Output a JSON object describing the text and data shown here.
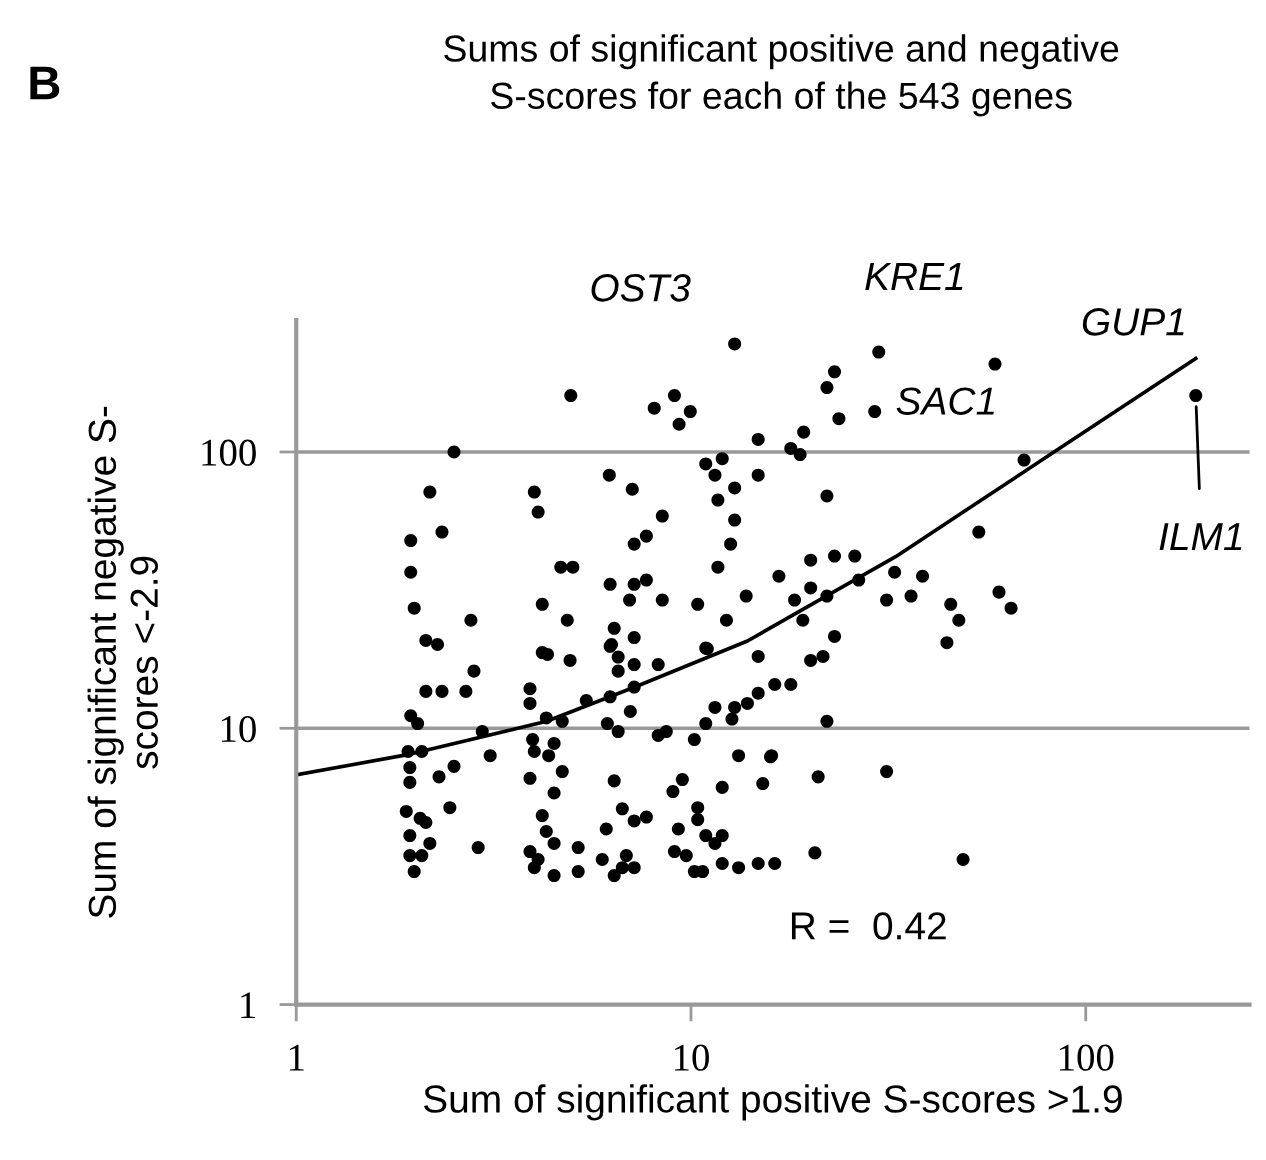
{
  "chart_data": {
    "type": "scatter",
    "title": "Sums of significant positive and negative\nS-scores for each of the 543 genes",
    "xlabel": "Sum of significant positive S-scores >1.9",
    "ylabel": "Sum of significant negative S-\nscores <-2.9",
    "log": "xy",
    "xlim": [
      1,
      260
    ],
    "ylim": [
      1,
      300
    ],
    "xticks": [
      1,
      10,
      100
    ],
    "yticks": [
      1,
      10,
      100
    ],
    "grid": "y",
    "annotations": [
      "B",
      {
        "text": "OST3",
        "x": 12.9,
        "y": 246
      },
      {
        "text": "KRE1",
        "x": 29.9,
        "y": 230
      },
      {
        "text": "GUP1",
        "x": 58.9,
        "y": 208
      },
      {
        "text": "SAC1",
        "x": 69.8,
        "y": 93.5
      },
      {
        "text": "ILM1",
        "x": 190,
        "y": 160
      },
      "R =  0.42"
    ],
    "series": [
      {
        "marker": "circle",
        "color": "#000000",
        "x": [
          12.9,
          4.96,
          8.07,
          9.08,
          9.96,
          9.33,
          14.8,
          2.51,
          10.9,
          12.0,
          6.21,
          14.8,
          11.5,
          2.18,
          4.01,
          7.1,
          12.9,
          4.1,
          11.7,
          8.46,
          12.9,
          2.34,
          1.95,
          7.71,
          7.18,
          12.6,
          1.95,
          4.68,
          5.02,
          11.7,
          6.24,
          7.18,
          7.71,
          16.7,
          6.99,
          8.46,
          13.8,
          1.99,
          4.2,
          10.4,
          2.77,
          4.86,
          12.3,
          6.39,
          2.13,
          2.28,
          6.29,
          7.18,
          10.9,
          4.2,
          4.94,
          14.8,
          29.9,
          58.9,
          23.1,
          22.1,
          29.2,
          23.7,
          19.3,
          17.9,
          18.9,
          190,
          69.8,
          22.1,
          53.6,
          20.1,
          23.1,
          26.0,
          32.8,
          38.6,
          20.1,
          26.6,
          18.3,
          22.1,
          31.3,
          36.1,
          45.5,
          60.3,
          64.7,
          47.7,
          19.2,
          23.1,
          44.5,
          20.1,
          21.6,
          4.33,
          6.24,
          6.54,
          7.18,
          8.26,
          11.0,
          2.82,
          6.54,
          2.13,
          2.34,
          2.69,
          3.91,
          7.18,
          16.3,
          3.91,
          5.43,
          6.24,
          14.8,
          13.9,
          1.95,
          2.03,
          4.3,
          4.72,
          7.02,
          11.5,
          12.9,
          12.7,
          6.14,
          10.9,
          2.96,
          3.97,
          4.5,
          6.54,
          8.26,
          8.66,
          10.2,
          1.92,
          2.08,
          4.01,
          4.36,
          3.1,
          13.2,
          16.0,
          1.94,
          2.51,
          2.3,
          4.72,
          1.94,
          3.91,
          6.39,
          9.51,
          4.5,
          9.0,
          12.0,
          15.2,
          2.45,
          1.9,
          2.06,
          2.13,
          4.2,
          6.7,
          7.18,
          7.71,
          10.4,
          10.4,
          1.94,
          4.3,
          6.1,
          9.29,
          10.9,
          12.0,
          2.89,
          2.18,
          4.5,
          5.18,
          11.5,
          1.94,
          2.08,
          3.91,
          4.1,
          5.96,
          6.86,
          9.08,
          9.73,
          1.99,
          4.01,
          4.5,
          5.18,
          6.39,
          6.7,
          7.18,
          10.2,
          10.7,
          12.0,
          13.2,
          14.8,
          16.3,
          17.9,
          22.1,
          15.9,
          21.0,
          31.3,
          20.6,
          48.9
        ],
        "values": [
          246,
          160,
          144,
          160,
          140,
          126,
          111,
          100,
          90.5,
          94.6,
          82.4,
          82.4,
          82.4,
          71.6,
          71.6,
          73.3,
          74.1,
          60.6,
          67.0,
          58.6,
          56.7,
          51.3,
          47.8,
          49.6,
          46.4,
          46.4,
          36.7,
          38.3,
          38.3,
          38.3,
          33.2,
          33.2,
          34.4,
          35.5,
          29.1,
          29.1,
          30.1,
          27.2,
          28.1,
          28.1,
          24.6,
          24.6,
          24.6,
          23.0,
          20.8,
          20.1,
          20.1,
          21.3,
          19.5,
          18.8,
          17.6,
          18.2,
          230,
          208,
          195,
          171,
          140,
          132,
          118,
          103,
          97.9,
          160,
          93.5,
          69.3,
          51.3,
          40.6,
          42.0,
          42.0,
          36.7,
          35.5,
          32.2,
          34.4,
          29.1,
          30.1,
          29.1,
          30.1,
          28.1,
          31.1,
          27.2,
          24.6,
          24.6,
          21.5,
          20.4,
          17.6,
          18.2,
          18.5,
          19.8,
          18.1,
          17.0,
          17.0,
          19.4,
          16.1,
          16.1,
          13.6,
          13.6,
          13.6,
          13.9,
          14.1,
          14.4,
          12.3,
          12.6,
          13.0,
          13.4,
          12.3,
          11.1,
          10.4,
          10.9,
          10.6,
          11.5,
          11.9,
          11.9,
          10.8,
          10.4,
          10.4,
          9.73,
          9.1,
          8.81,
          9.73,
          9.42,
          9.73,
          9.1,
          8.24,
          8.24,
          8.24,
          7.96,
          7.96,
          7.96,
          7.96,
          7.21,
          7.28,
          6.67,
          6.97,
          6.37,
          6.59,
          6.45,
          6.52,
          5.83,
          5.9,
          6.11,
          6.31,
          5.16,
          5.0,
          4.72,
          4.56,
          4.83,
          5.11,
          4.62,
          4.77,
          5.16,
          4.67,
          4.09,
          4.23,
          4.32,
          4.32,
          4.09,
          4.09,
          3.7,
          3.83,
          3.83,
          3.7,
          3.83,
          3.46,
          3.46,
          3.58,
          3.35,
          3.35,
          3.46,
          3.58,
          3.46,
          3.03,
          3.13,
          2.93,
          3.03,
          2.93,
          3.13,
          3.13,
          3.03,
          3.03,
          3.24,
          3.13,
          3.24,
          3.24,
          14.4,
          10.6,
          7.88,
          6.67,
          6.97,
          3.54,
          3.35
        ]
      },
      {
        "type": "line",
        "marker": "none",
        "color": "#000000",
        "x": [
          1,
          1.9,
          4.31,
          7.21,
          13.9,
          33.0,
          84.0,
          190
        ],
        "values": [
          6.78,
          8.01,
          10.6,
          14.1,
          20.7,
          41.8,
          101,
          218
        ]
      }
    ]
  }
}
